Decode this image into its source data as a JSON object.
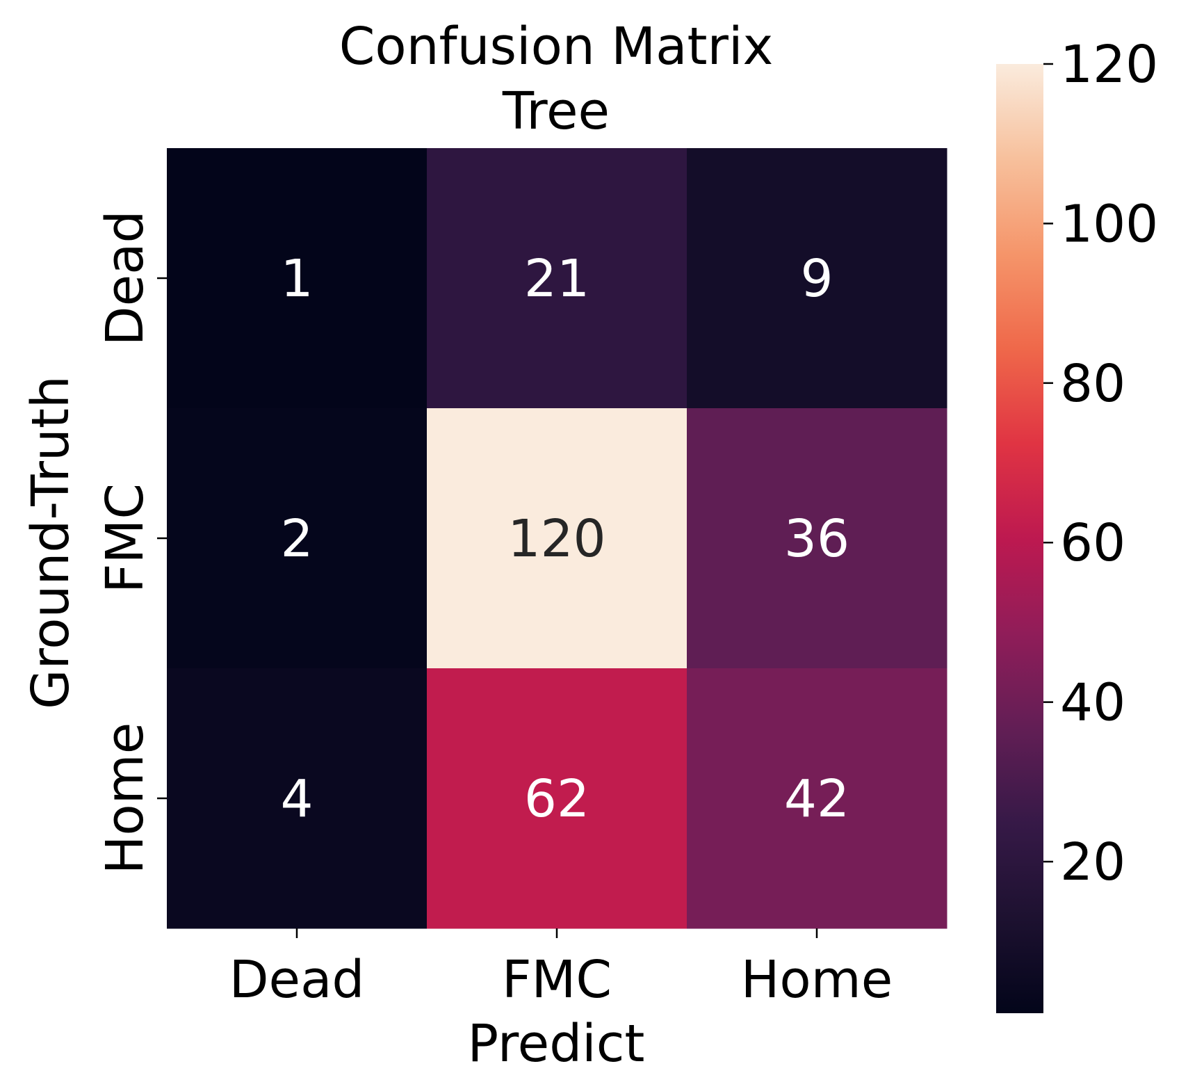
{
  "chart_data": {
    "type": "heatmap",
    "title": "Confusion Matrix\nTree",
    "title_lines": [
      "Confusion Matrix",
      "Tree"
    ],
    "xlabel": "Predict",
    "ylabel": "Ground-Truth",
    "x_categories": [
      "Dead",
      "FMC",
      "Home"
    ],
    "y_categories": [
      "Dead",
      "FMC",
      "Home"
    ],
    "values": [
      [
        1,
        21,
        9
      ],
      [
        2,
        120,
        36
      ],
      [
        4,
        62,
        42
      ]
    ],
    "colorbar": {
      "min": 1,
      "max": 120,
      "ticks": [
        20,
        40,
        60,
        80,
        100,
        120
      ],
      "colormap": "rocket"
    }
  }
}
